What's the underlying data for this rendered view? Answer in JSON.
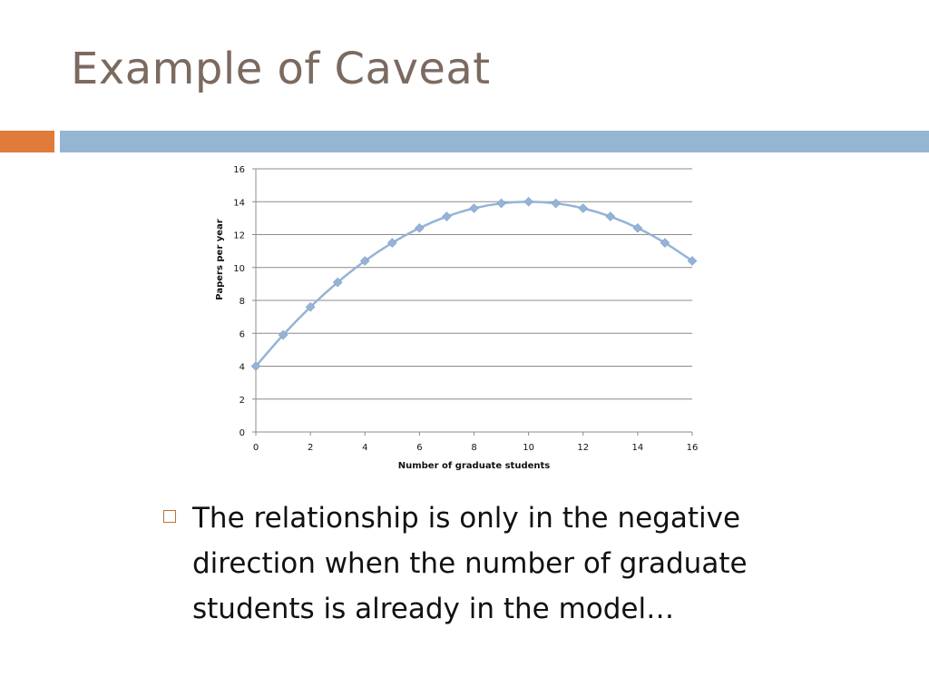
{
  "slide": {
    "title": "Example of Caveat",
    "colors": {
      "accent": "#e07b39",
      "bar": "#94b6d2",
      "title": "#7b6a60"
    }
  },
  "bullet": {
    "text": "The relationship is only in the negative direction when the number of graduate students is already in the model…",
    "icon": "hollow-square-bullet"
  },
  "chart_data": {
    "type": "line",
    "xlabel": "Number of graduate students",
    "ylabel": "Papers per year",
    "xlim": [
      0,
      16
    ],
    "ylim": [
      0,
      16
    ],
    "xticks": [
      0,
      2,
      4,
      6,
      8,
      10,
      12,
      14,
      16
    ],
    "yticks": [
      0,
      2,
      4,
      6,
      8,
      10,
      12,
      14,
      16
    ],
    "grid": "horizontal",
    "legend": "none",
    "color": "#95b3d7",
    "series": [
      {
        "x": [
          0,
          1,
          2,
          3,
          4,
          5,
          6,
          7,
          8,
          9,
          10,
          11,
          12,
          13,
          14,
          15,
          16
        ],
        "y": [
          4,
          5.9,
          7.6,
          9.1,
          10.4,
          11.5,
          12.4,
          13.1,
          13.6,
          13.9,
          14,
          13.9,
          13.6,
          13.1,
          12.4,
          11.5,
          10.4
        ]
      }
    ]
  }
}
